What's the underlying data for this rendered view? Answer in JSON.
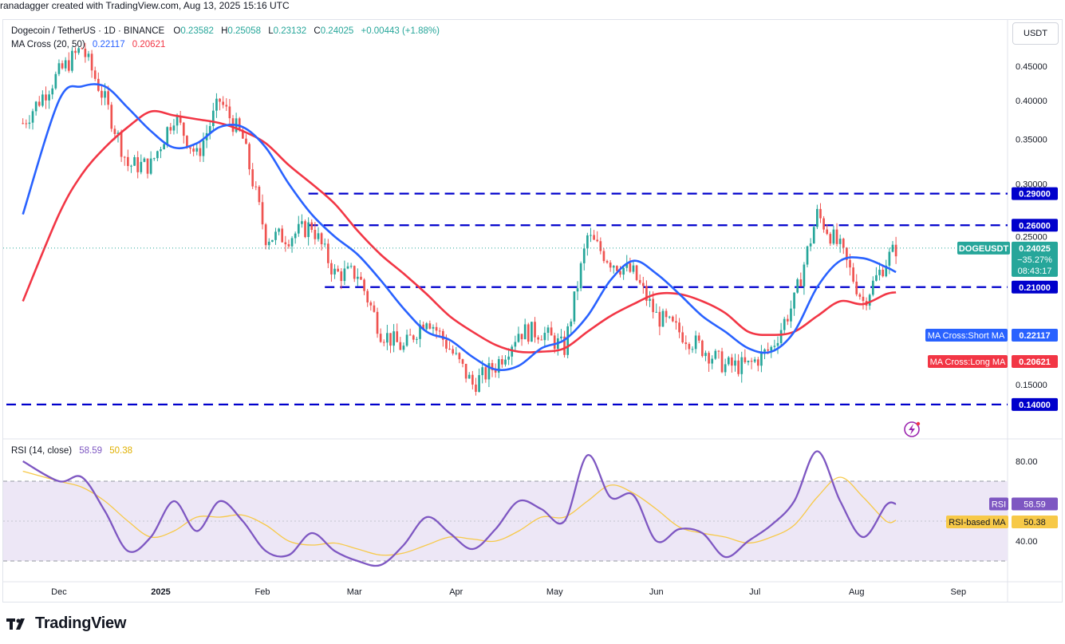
{
  "header": {
    "credit": "ranadagger created with TradingView.com, Aug 13, 2025 15:16 UTC"
  },
  "legend": {
    "symbol": "Dogecoin / TetherUS · 1D · BINANCE",
    "o_label": "O",
    "o": "0.23582",
    "h_label": "H",
    "h": "0.25058",
    "l_label": "L",
    "l": "0.23132",
    "c_label": "C",
    "c": "0.24025",
    "change": "+0.00443 (+1.88%)",
    "ma_title": "MA Cross (20, 50)",
    "ma_short": "0.22117",
    "ma_long": "0.20621",
    "rsi_title": "RSI (14, close)",
    "rsi_value": "58.59",
    "rsi_ma_value": "50.38"
  },
  "currency_button": "USDT",
  "price_axis": {
    "ticks": [
      "0.45000",
      "0.40000",
      "0.35000",
      "0.30000",
      "0.25000",
      "0.15000"
    ],
    "tick_values": [
      0.45,
      0.4,
      0.35,
      0.3,
      0.25,
      0.15
    ]
  },
  "rsi_axis": {
    "ticks": [
      "80.00",
      "40.00"
    ],
    "tick_values": [
      80,
      40
    ]
  },
  "time_axis": [
    "Dec",
    "2025",
    "Feb",
    "Mar",
    "Apr",
    "May",
    "Jun",
    "Jul",
    "Aug",
    "Sep"
  ],
  "labels": {
    "level_290": "0.29000",
    "level_260": "0.26000",
    "level_210": "0.21000",
    "level_140": "0.14000",
    "price_symbol": "DOGEUSDT",
    "price_value": "0.24025",
    "price_change": "−35.27%",
    "countdown": "08:43:17",
    "ma_short_label": "MA Cross:Short MA",
    "ma_short_value": "0.22117",
    "ma_long_label": "MA Cross:Long MA",
    "ma_long_value": "0.20621",
    "rsi_tag": "RSI",
    "rsi_tag_value": "58.59",
    "rsi_ma_tag": "RSI-based MA",
    "rsi_ma_tag_value": "50.38"
  },
  "colors": {
    "up": "#26a69a",
    "down": "#ef5350",
    "ma_short": "#2962ff",
    "ma_long": "#f23645",
    "level_line": "#0000cc",
    "rsi_line": "#7e57c2",
    "rsi_ma": "#f7c948",
    "rsi_band": "#ede7f6"
  },
  "footer": {
    "brand": "TradingView"
  },
  "chart_data": [
    {
      "type": "candlestick",
      "title": "Dogecoin / TetherUS · 1D · BINANCE",
      "y_scale": "log",
      "ylim": [
        0.125,
        0.5
      ],
      "support_resistance_levels": [
        0.29,
        0.26,
        0.21,
        0.14
      ],
      "series": [
        {
          "name": "DOGEUSDT",
          "points": [
            [
              "2024-11-20",
              0.37
            ],
            [
              "2024-12-01",
              0.44
            ],
            [
              "2024-12-08",
              0.48
            ],
            [
              "2024-12-15",
              0.4
            ],
            [
              "2024-12-22",
              0.32
            ],
            [
              "2024-12-29",
              0.32
            ],
            [
              "2025-01-05",
              0.38
            ],
            [
              "2025-01-12",
              0.33
            ],
            [
              "2025-01-19",
              0.4
            ],
            [
              "2025-01-26",
              0.35
            ],
            [
              "2025-02-02",
              0.25
            ],
            [
              "2025-02-09",
              0.25
            ],
            [
              "2025-02-16",
              0.26
            ],
            [
              "2025-02-23",
              0.22
            ],
            [
              "2025-03-02",
              0.22
            ],
            [
              "2025-03-09",
              0.18
            ],
            [
              "2025-03-16",
              0.17
            ],
            [
              "2025-03-23",
              0.19
            ],
            [
              "2025-03-30",
              0.17
            ],
            [
              "2025-04-06",
              0.15
            ],
            [
              "2025-04-13",
              0.16
            ],
            [
              "2025-04-20",
              0.18
            ],
            [
              "2025-04-27",
              0.18
            ],
            [
              "2025-05-04",
              0.17
            ],
            [
              "2025-05-11",
              0.25
            ],
            [
              "2025-05-18",
              0.23
            ],
            [
              "2025-05-25",
              0.22
            ],
            [
              "2025-06-01",
              0.19
            ],
            [
              "2025-06-08",
              0.18
            ],
            [
              "2025-06-15",
              0.17
            ],
            [
              "2025-06-22",
              0.16
            ],
            [
              "2025-06-29",
              0.16
            ],
            [
              "2025-07-06",
              0.17
            ],
            [
              "2025-07-13",
              0.2
            ],
            [
              "2025-07-20",
              0.27
            ],
            [
              "2025-07-27",
              0.24
            ],
            [
              "2025-08-03",
              0.2
            ],
            [
              "2025-08-10",
              0.23
            ],
            [
              "2025-08-13",
              0.24025
            ]
          ]
        },
        {
          "name": "MA Cross:Short MA",
          "points": [
            [
              "2024-11-20",
              0.27
            ],
            [
              "2024-12-01",
              0.4
            ],
            [
              "2024-12-08",
              0.42
            ],
            [
              "2024-12-15",
              0.42
            ],
            [
              "2024-12-22",
              0.39
            ],
            [
              "2024-12-29",
              0.36
            ],
            [
              "2025-01-05",
              0.34
            ],
            [
              "2025-01-12",
              0.345
            ],
            [
              "2025-01-19",
              0.365
            ],
            [
              "2025-01-26",
              0.365
            ],
            [
              "2025-02-02",
              0.34
            ],
            [
              "2025-02-09",
              0.3
            ],
            [
              "2025-02-16",
              0.27
            ],
            [
              "2025-02-23",
              0.25
            ],
            [
              "2025-03-02",
              0.235
            ],
            [
              "2025-03-09",
              0.215
            ],
            [
              "2025-03-16",
              0.195
            ],
            [
              "2025-03-23",
              0.18
            ],
            [
              "2025-03-30",
              0.175
            ],
            [
              "2025-04-06",
              0.165
            ],
            [
              "2025-04-13",
              0.158
            ],
            [
              "2025-04-20",
              0.16
            ],
            [
              "2025-04-27",
              0.17
            ],
            [
              "2025-05-04",
              0.175
            ],
            [
              "2025-05-11",
              0.19
            ],
            [
              "2025-05-18",
              0.215
            ],
            [
              "2025-05-25",
              0.23
            ],
            [
              "2025-06-01",
              0.22
            ],
            [
              "2025-06-08",
              0.205
            ],
            [
              "2025-06-15",
              0.19
            ],
            [
              "2025-06-22",
              0.18
            ],
            [
              "2025-06-29",
              0.17
            ],
            [
              "2025-07-06",
              0.168
            ],
            [
              "2025-07-13",
              0.18
            ],
            [
              "2025-07-20",
              0.21
            ],
            [
              "2025-07-27",
              0.23
            ],
            [
              "2025-08-03",
              0.232
            ],
            [
              "2025-08-10",
              0.225
            ],
            [
              "2025-08-13",
              0.22117
            ]
          ]
        },
        {
          "name": "MA Cross:Long MA",
          "points": [
            [
              "2024-11-20",
              0.2
            ],
            [
              "2024-12-01",
              0.27
            ],
            [
              "2024-12-08",
              0.31
            ],
            [
              "2024-12-15",
              0.34
            ],
            [
              "2024-12-22",
              0.365
            ],
            [
              "2024-12-29",
              0.385
            ],
            [
              "2025-01-05",
              0.38
            ],
            [
              "2025-01-12",
              0.375
            ],
            [
              "2025-01-19",
              0.37
            ],
            [
              "2025-01-26",
              0.36
            ],
            [
              "2025-02-02",
              0.345
            ],
            [
              "2025-02-09",
              0.32
            ],
            [
              "2025-02-16",
              0.3
            ],
            [
              "2025-02-23",
              0.28
            ],
            [
              "2025-03-02",
              0.255
            ],
            [
              "2025-03-09",
              0.235
            ],
            [
              "2025-03-16",
              0.22
            ],
            [
              "2025-03-23",
              0.205
            ],
            [
              "2025-03-30",
              0.19
            ],
            [
              "2025-04-06",
              0.18
            ],
            [
              "2025-04-13",
              0.172
            ],
            [
              "2025-04-20",
              0.168
            ],
            [
              "2025-04-27",
              0.168
            ],
            [
              "2025-05-04",
              0.17
            ],
            [
              "2025-05-11",
              0.18
            ],
            [
              "2025-05-18",
              0.19
            ],
            [
              "2025-05-25",
              0.198
            ],
            [
              "2025-06-01",
              0.205
            ],
            [
              "2025-06-08",
              0.205
            ],
            [
              "2025-06-15",
              0.2
            ],
            [
              "2025-06-22",
              0.192
            ],
            [
              "2025-06-29",
              0.18
            ],
            [
              "2025-07-06",
              0.178
            ],
            [
              "2025-07-13",
              0.18
            ],
            [
              "2025-07-20",
              0.19
            ],
            [
              "2025-07-27",
              0.2
            ],
            [
              "2025-08-03",
              0.198
            ],
            [
              "2025-08-10",
              0.205
            ],
            [
              "2025-08-13",
              0.20621
            ]
          ]
        }
      ]
    },
    {
      "type": "line",
      "title": "RSI (14, close)",
      "ylim": [
        20,
        90
      ],
      "bands": [
        30,
        70
      ],
      "series": [
        {
          "name": "RSI",
          "points": [
            [
              "2024-11-20",
              80
            ],
            [
              "2024-12-01",
              70
            ],
            [
              "2024-12-08",
              72
            ],
            [
              "2024-12-15",
              55
            ],
            [
              "2024-12-22",
              35
            ],
            [
              "2024-12-29",
              42
            ],
            [
              "2025-01-05",
              60
            ],
            [
              "2025-01-12",
              45
            ],
            [
              "2025-01-19",
              60
            ],
            [
              "2025-01-26",
              50
            ],
            [
              "2025-02-02",
              35
            ],
            [
              "2025-02-09",
              33
            ],
            [
              "2025-02-16",
              44
            ],
            [
              "2025-02-23",
              35
            ],
            [
              "2025-03-02",
              30
            ],
            [
              "2025-03-09",
              28
            ],
            [
              "2025-03-16",
              38
            ],
            [
              "2025-03-23",
              52
            ],
            [
              "2025-03-30",
              44
            ],
            [
              "2025-04-06",
              36
            ],
            [
              "2025-04-13",
              46
            ],
            [
              "2025-04-20",
              60
            ],
            [
              "2025-04-27",
              56
            ],
            [
              "2025-05-04",
              50
            ],
            [
              "2025-05-11",
              83
            ],
            [
              "2025-05-18",
              62
            ],
            [
              "2025-05-25",
              63
            ],
            [
              "2025-06-01",
              40
            ],
            [
              "2025-06-08",
              46
            ],
            [
              "2025-06-15",
              44
            ],
            [
              "2025-06-22",
              32
            ],
            [
              "2025-06-29",
              40
            ],
            [
              "2025-07-06",
              48
            ],
            [
              "2025-07-13",
              60
            ],
            [
              "2025-07-20",
              85
            ],
            [
              "2025-07-27",
              60
            ],
            [
              "2025-08-03",
              42
            ],
            [
              "2025-08-10",
              58
            ],
            [
              "2025-08-13",
              58.59
            ]
          ]
        },
        {
          "name": "RSI-based MA",
          "points": [
            [
              "2024-11-20",
              75
            ],
            [
              "2024-12-01",
              70
            ],
            [
              "2024-12-08",
              67
            ],
            [
              "2024-12-15",
              60
            ],
            [
              "2024-12-22",
              50
            ],
            [
              "2024-12-29",
              42
            ],
            [
              "2025-01-05",
              45
            ],
            [
              "2025-01-12",
              52
            ],
            [
              "2025-01-19",
              52
            ],
            [
              "2025-01-26",
              53
            ],
            [
              "2025-02-02",
              48
            ],
            [
              "2025-02-09",
              40
            ],
            [
              "2025-02-16",
              38
            ],
            [
              "2025-02-23",
              39
            ],
            [
              "2025-03-02",
              36
            ],
            [
              "2025-03-09",
              33
            ],
            [
              "2025-03-16",
              34
            ],
            [
              "2025-03-23",
              38
            ],
            [
              "2025-03-30",
              42
            ],
            [
              "2025-04-06",
              41
            ],
            [
              "2025-04-13",
              40
            ],
            [
              "2025-04-20",
              45
            ],
            [
              "2025-04-27",
              52
            ],
            [
              "2025-05-04",
              52
            ],
            [
              "2025-05-11",
              60
            ],
            [
              "2025-05-18",
              68
            ],
            [
              "2025-05-25",
              64
            ],
            [
              "2025-06-01",
              56
            ],
            [
              "2025-06-08",
              47
            ],
            [
              "2025-06-15",
              44
            ],
            [
              "2025-06-22",
              42
            ],
            [
              "2025-06-29",
              39
            ],
            [
              "2025-07-06",
              42
            ],
            [
              "2025-07-13",
              48
            ],
            [
              "2025-07-20",
              62
            ],
            [
              "2025-07-27",
              72
            ],
            [
              "2025-08-03",
              62
            ],
            [
              "2025-08-10",
              50
            ],
            [
              "2025-08-13",
              50.38
            ]
          ]
        }
      ]
    }
  ]
}
